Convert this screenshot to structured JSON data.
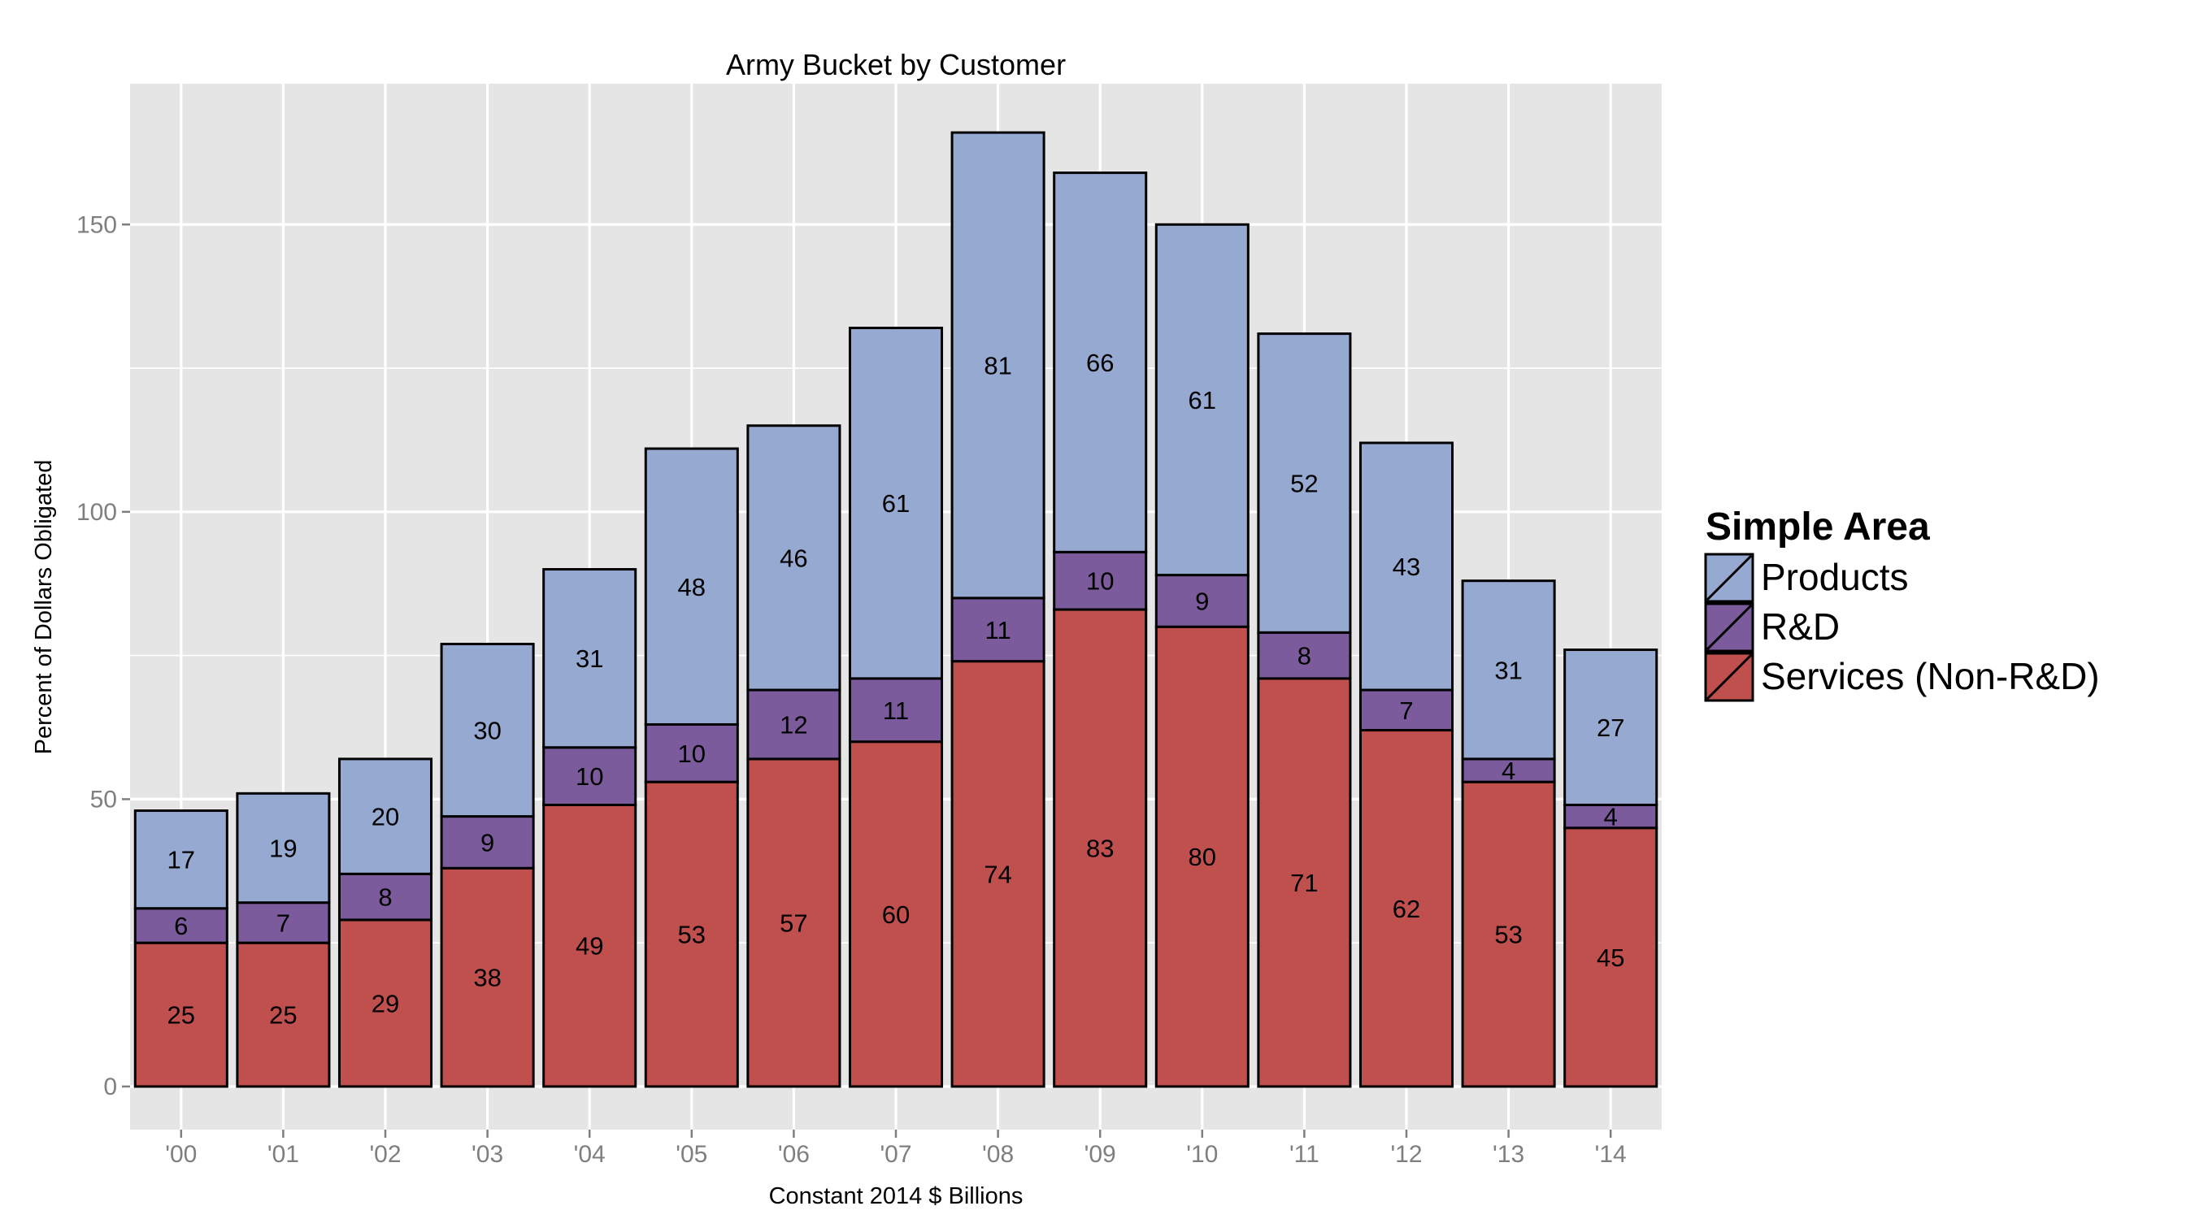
{
  "chart_data": {
    "type": "bar",
    "stacked": true,
    "title": "Army Bucket by Customer",
    "xlabel": "Constant 2014 $ Billions",
    "ylabel": "Percent of Dollars Obligated",
    "ylim": [
      -7.5,
      174.5
    ],
    "yticks": [
      0,
      50,
      100,
      150
    ],
    "grid": true,
    "legend_position": "right",
    "legend_title": "Simple Area",
    "categories": [
      "'00",
      "'01",
      "'02",
      "'03",
      "'04",
      "'05",
      "'06",
      "'07",
      "'08",
      "'09",
      "'10",
      "'11",
      "'12",
      "'13",
      "'14"
    ],
    "series": [
      {
        "name": "Services (Non-R&D)",
        "color": "#c0504d",
        "values": [
          25,
          25,
          29,
          38,
          49,
          53,
          57,
          60,
          74,
          83,
          80,
          71,
          62,
          53,
          45
        ]
      },
      {
        "name": "R&D",
        "color": "#7b5b9b",
        "values": [
          6,
          7,
          8,
          9,
          10,
          10,
          12,
          11,
          11,
          10,
          9,
          8,
          7,
          4,
          4
        ]
      },
      {
        "name": "Products",
        "color": "#95a9d1",
        "values": [
          17,
          19,
          20,
          30,
          31,
          48,
          46,
          61,
          81,
          66,
          61,
          52,
          43,
          31,
          27
        ]
      }
    ],
    "legend_order": [
      "Products",
      "R&D",
      "Services (Non-R&D)"
    ],
    "panel_color": "#e5e5e5",
    "grid_color": "#ffffff"
  }
}
